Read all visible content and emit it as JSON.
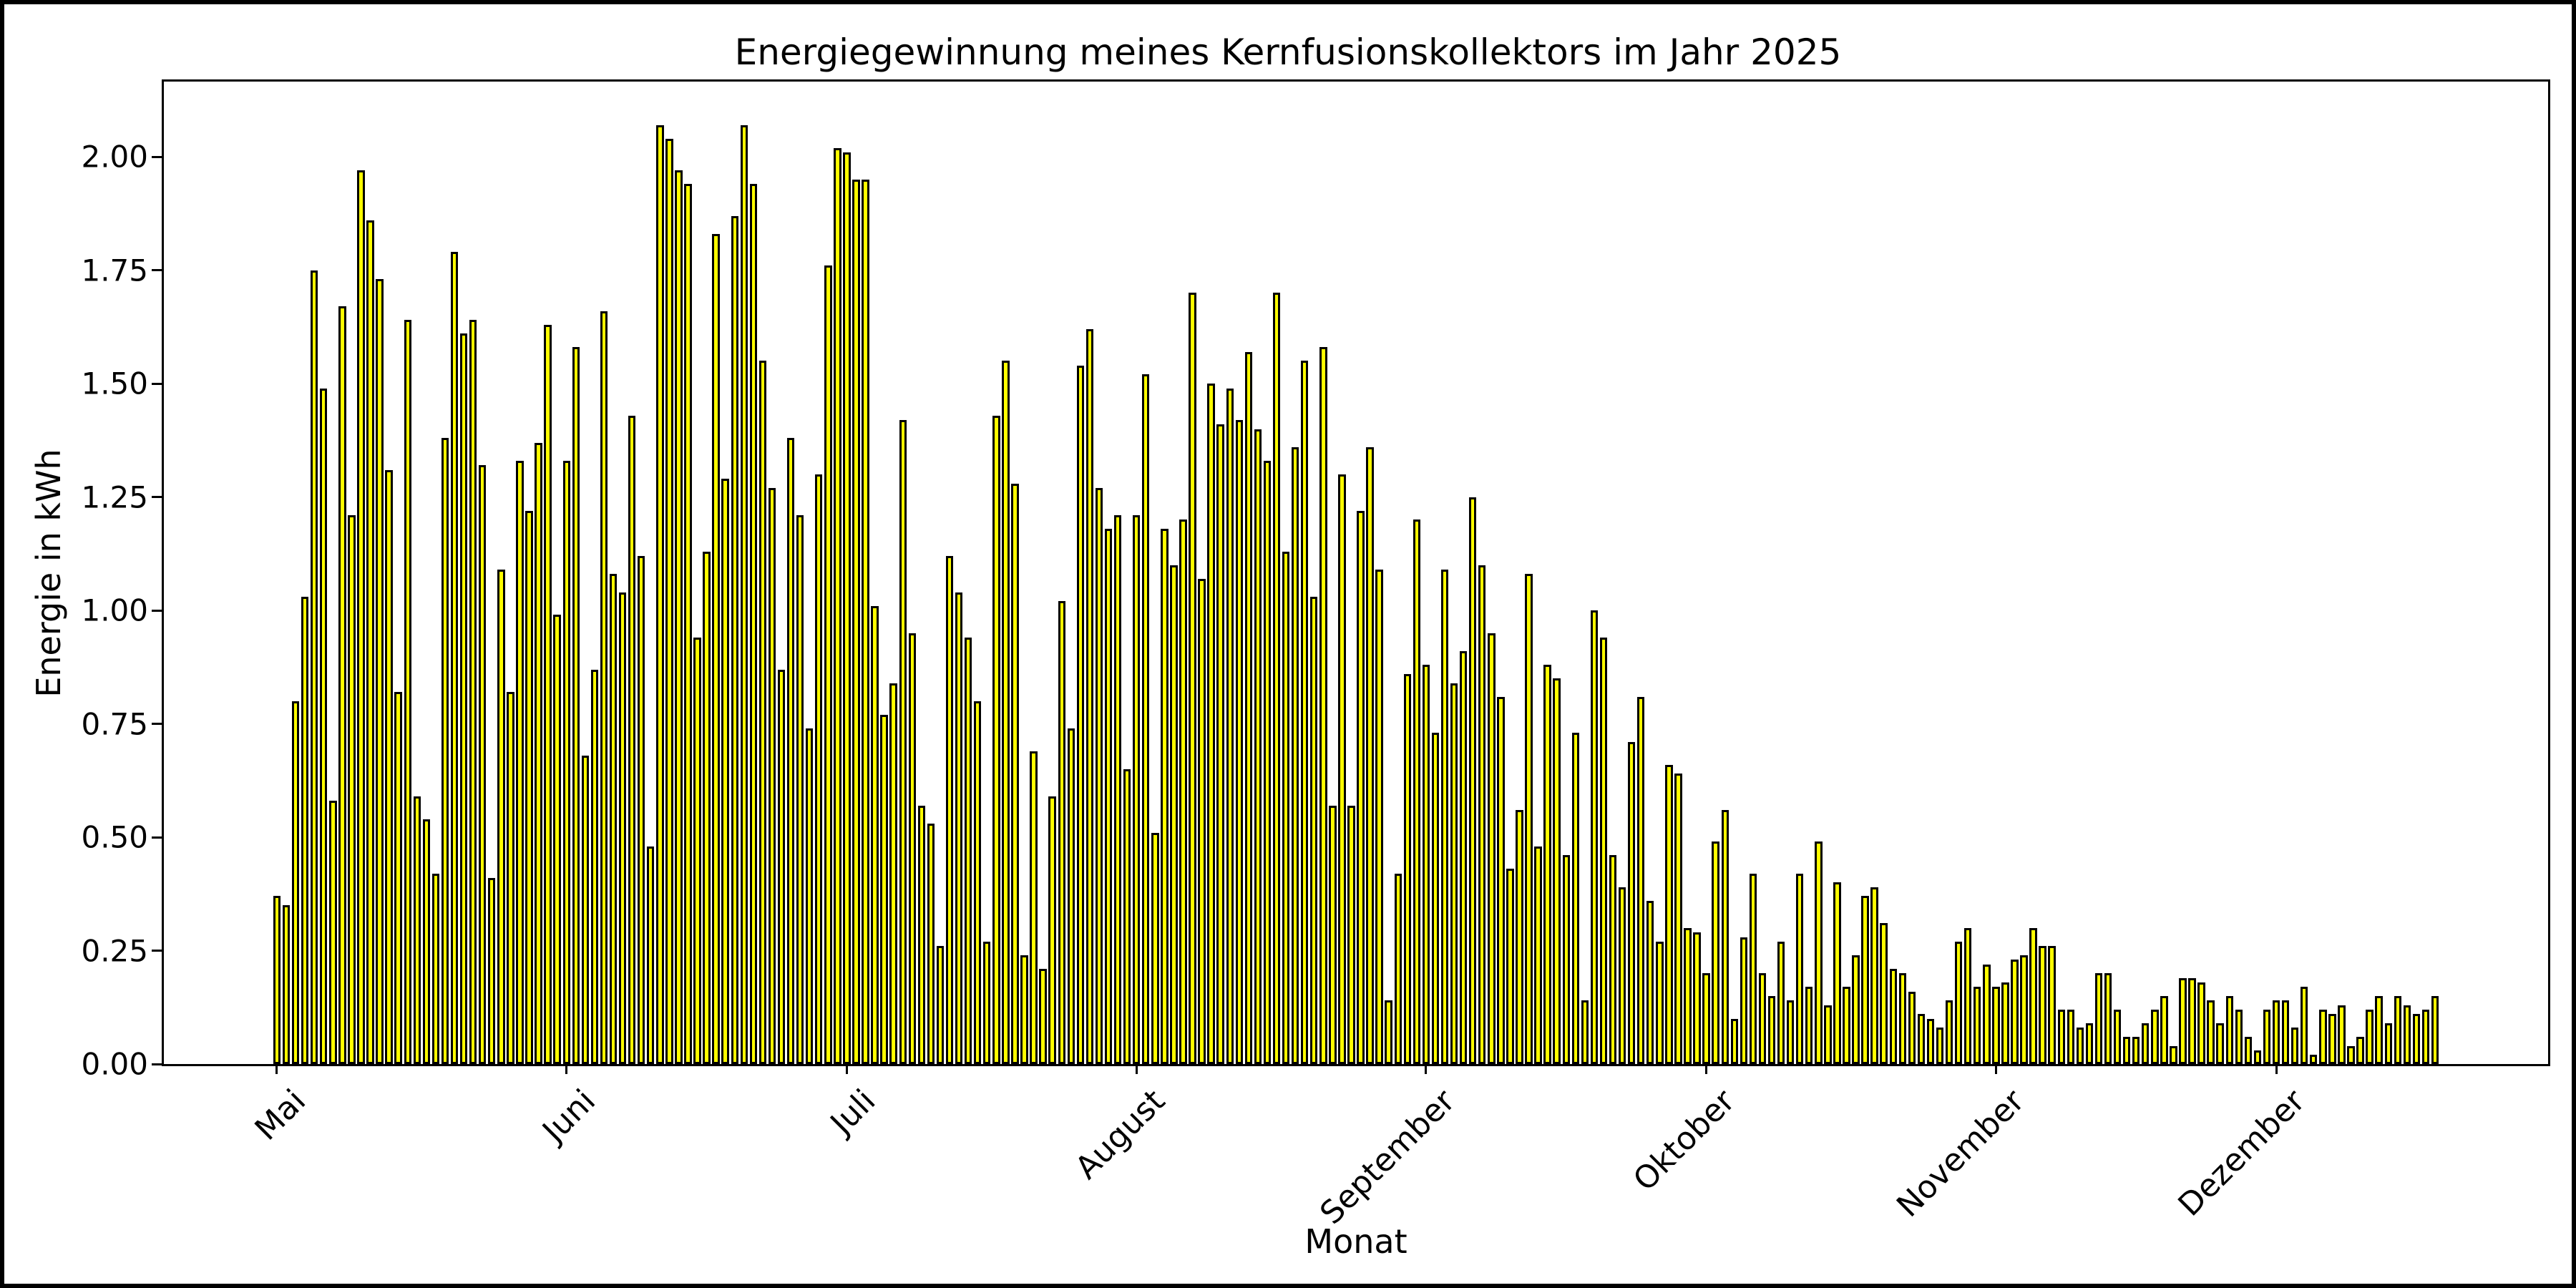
{
  "chart_data": {
    "type": "bar",
    "title": "Energiegewinnung meines Kernfusionskollektors im Jahr 2025",
    "xlabel": "Monat",
    "ylabel": "Energie in kWh",
    "year": 2025,
    "date_range": "Mai bis Dezember (1. Mai - 18. Dezember), ein Balken pro Tag",
    "bar_color": "#ffff00",
    "bar_edge_color": "#000000",
    "background_color": "#ffffff",
    "grid": false,
    "ylim": [
      0,
      2.166
    ],
    "yticks": [
      "0.00",
      "0.25",
      "0.50",
      "0.75",
      "1.00",
      "1.25",
      "1.50",
      "1.75",
      "2.00"
    ],
    "ytick_values": [
      0.0,
      0.25,
      0.5,
      0.75,
      1.0,
      1.25,
      1.5,
      1.75,
      2.0
    ],
    "xticks": [
      {
        "label": "Mai",
        "day_index": 0
      },
      {
        "label": "Juni",
        "day_index": 31
      },
      {
        "label": "Juli",
        "day_index": 61
      },
      {
        "label": "August",
        "day_index": 92
      },
      {
        "label": "September",
        "day_index": 123
      },
      {
        "label": "Oktober",
        "day_index": 153
      },
      {
        "label": "November",
        "day_index": 184
      },
      {
        "label": "Dezember",
        "day_index": 214
      }
    ],
    "series": [
      {
        "name": "Mai",
        "values": [
          0.37,
          0.35,
          0.8,
          1.03,
          1.75,
          1.49,
          0.58,
          1.67,
          1.21,
          1.97,
          1.86,
          1.73,
          1.31,
          0.82,
          1.64,
          0.59,
          0.54,
          0.42,
          1.38,
          1.79,
          1.61,
          1.64,
          1.32,
          0.41,
          1.09,
          0.82,
          1.33,
          1.22,
          1.37,
          1.63,
          0.99
        ]
      },
      {
        "name": "Juni",
        "values": [
          1.33,
          1.58,
          0.68,
          0.87,
          1.66,
          1.08,
          1.04,
          1.43,
          1.12,
          0.48,
          2.07,
          2.04,
          1.97,
          1.94,
          0.94,
          1.13,
          1.83,
          1.29,
          1.87,
          2.07,
          1.94,
          1.55,
          1.27,
          0.87,
          1.38,
          1.21,
          0.74,
          1.3,
          1.76,
          2.02
        ]
      },
      {
        "name": "Juli",
        "values": [
          2.01,
          1.95,
          1.95,
          1.01,
          0.77,
          0.84,
          1.42,
          0.95,
          0.57,
          0.53,
          0.26,
          1.12,
          1.04,
          0.94,
          0.8,
          0.27,
          1.43,
          1.55,
          1.28,
          0.24,
          0.69,
          0.21,
          0.59,
          1.02,
          0.74,
          1.54,
          1.62,
          1.27,
          1.18,
          1.21,
          0.65
        ]
      },
      {
        "name": "August",
        "values": [
          1.21,
          1.52,
          0.51,
          1.18,
          1.1,
          1.2,
          1.7,
          1.07,
          1.5,
          1.41,
          1.49,
          1.42,
          1.57,
          1.4,
          1.33,
          1.7,
          1.13,
          1.36,
          1.55,
          1.03,
          1.58,
          0.57,
          1.3,
          0.57,
          1.22,
          1.36,
          1.09,
          0.14,
          0.42,
          0.86,
          1.2
        ]
      },
      {
        "name": "September",
        "values": [
          0.88,
          0.73,
          1.09,
          0.84,
          0.91,
          1.25,
          1.1,
          0.95,
          0.81,
          0.43,
          0.56,
          1.08,
          0.48,
          0.88,
          0.85,
          0.46,
          0.73,
          0.14,
          1.0,
          0.94,
          0.46,
          0.39,
          0.71,
          0.81,
          0.36,
          0.27,
          0.66,
          0.64,
          0.3,
          0.29
        ]
      },
      {
        "name": "Oktober",
        "values": [
          0.2,
          0.49,
          0.56,
          0.1,
          0.28,
          0.42,
          0.2,
          0.15,
          0.27,
          0.14,
          0.42,
          0.17,
          0.49,
          0.13,
          0.4,
          0.17,
          0.24,
          0.37,
          0.39,
          0.31,
          0.21,
          0.2,
          0.16,
          0.11,
          0.1,
          0.08,
          0.14,
          0.27,
          0.3,
          0.17,
          0.22
        ]
      },
      {
        "name": "November",
        "values": [
          0.17,
          0.18,
          0.23,
          0.24,
          0.3,
          0.26,
          0.26,
          0.12,
          0.12,
          0.08,
          0.09,
          0.2,
          0.2,
          0.12,
          0.06,
          0.06,
          0.09,
          0.12,
          0.15,
          0.04,
          0.19,
          0.19,
          0.18,
          0.14,
          0.09,
          0.15,
          0.12,
          0.06,
          0.03,
          0.12
        ]
      },
      {
        "name": "Dezember",
        "values": [
          0.14,
          0.14,
          0.08,
          0.17,
          0.02,
          0.12,
          0.11,
          0.13,
          0.04,
          0.06,
          0.12,
          0.15,
          0.09,
          0.15,
          0.13,
          0.11,
          0.12,
          0.15
        ]
      }
    ],
    "layout": {
      "plot_left": 223,
      "plot_top": 108,
      "plot_right": 3555,
      "plot_bottom": 1481,
      "side_margin_days": 11.6,
      "bar_rel_width": 0.8
    }
  }
}
